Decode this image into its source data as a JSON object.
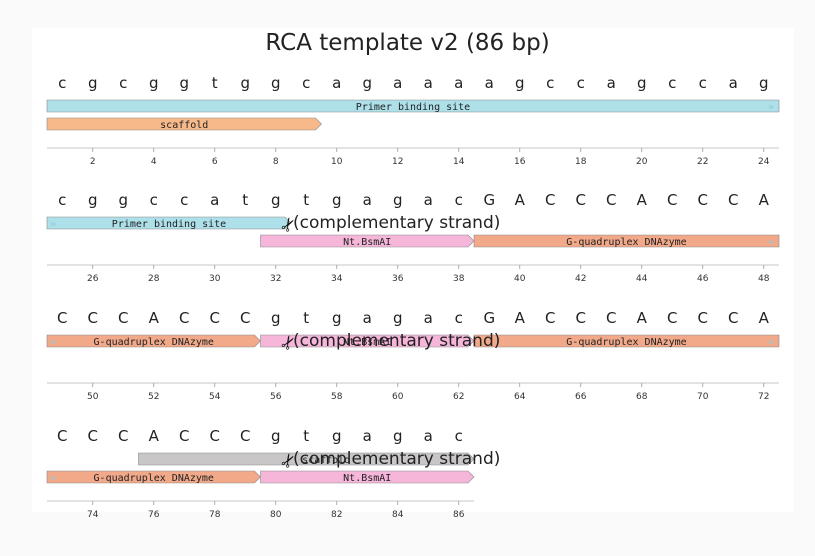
{
  "title": "RCA template v2 (86 bp)",
  "colors": {
    "primer_binding_site": "#aee0ea",
    "scaffold": "#f7b98a",
    "nicking_site": "#f6b6d9",
    "dnazyme": "#f2a98a",
    "scaffold_complement": "#c8c6c6",
    "arrow_marker": "#9ad6dd"
  },
  "rows": [
    {
      "start": 1,
      "bases": [
        "c",
        "g",
        "c",
        "g",
        "g",
        "t",
        "g",
        "g",
        "c",
        "a",
        "g",
        "a",
        "a",
        "a",
        "a",
        "g",
        "c",
        "c",
        "a",
        "g",
        "c",
        "c",
        "a",
        "g"
      ],
      "tick_labels": [
        "2",
        "4",
        "6",
        "8",
        "10",
        "12",
        "14",
        "16",
        "18",
        "20",
        "22",
        "24"
      ],
      "features": [
        {
          "label": "Primer binding site",
          "start": 1,
          "end": 24,
          "type": "primer_binding_site",
          "arrow": "continues"
        },
        {
          "label": "scaffold",
          "start": 1,
          "end": 9,
          "type": "scaffold",
          "arrow": "ends"
        }
      ],
      "cut_sites": []
    },
    {
      "start": 25,
      "bases": [
        "c",
        "g",
        "g",
        "c",
        "c",
        "a",
        "t",
        "g",
        "t",
        "g",
        "a",
        "g",
        "a",
        "c",
        "G",
        "A",
        "C",
        "C",
        "C",
        "A",
        "C",
        "C",
        "C",
        "A"
      ],
      "tick_labels": [
        "26",
        "28",
        "30",
        "32",
        "34",
        "36",
        "38",
        "40",
        "42",
        "44",
        "46",
        "48"
      ],
      "features": [
        {
          "label": "Primer binding site",
          "start": 25,
          "end": 32,
          "type": "primer_binding_site",
          "arrow": "ends",
          "cont_left": true
        },
        {
          "label": "Nt.BsmAI",
          "start": 32,
          "end": 38,
          "type": "nicking_site",
          "arrow": "ends"
        },
        {
          "label": "G-quadruplex DNAzyme",
          "start": 39,
          "end": 48,
          "type": "dnazyme",
          "arrow": "continues"
        }
      ],
      "cut_sites": [
        {
          "label": "(complementary strand)",
          "after_base": 32
        }
      ]
    },
    {
      "start": 49,
      "bases": [
        "C",
        "C",
        "C",
        "A",
        "C",
        "C",
        "C",
        "g",
        "t",
        "g",
        "a",
        "g",
        "a",
        "c",
        "G",
        "A",
        "C",
        "C",
        "C",
        "A",
        "C",
        "C",
        "C",
        "A"
      ],
      "tick_labels": [
        "50",
        "52",
        "54",
        "56",
        "58",
        "60",
        "62",
        "64",
        "66",
        "68",
        "70",
        "72"
      ],
      "features": [
        {
          "label": "G-quadruplex DNAzyme",
          "start": 49,
          "end": 55,
          "type": "dnazyme",
          "arrow": "ends",
          "cont_left": true
        },
        {
          "label": "Nt.BsmAI",
          "start": 56,
          "end": 62,
          "type": "nicking_site",
          "arrow": "ends"
        },
        {
          "label": "G-quadruplex DNAzyme",
          "start": 63,
          "end": 72,
          "type": "dnazyme",
          "arrow": "continues"
        }
      ],
      "cut_sites": [
        {
          "label": "(complementary strand)",
          "after_base": 56
        }
      ]
    },
    {
      "start": 73,
      "bases": [
        "C",
        "C",
        "C",
        "A",
        "C",
        "C",
        "C",
        "g",
        "t",
        "g",
        "a",
        "g",
        "a",
        "c"
      ],
      "tick_labels": [
        "74",
        "76",
        "78",
        "80",
        "82",
        "84",
        "86"
      ],
      "features": [
        {
          "label": "scaffold",
          "start": 76,
          "end": 86,
          "type": "scaffold_complement",
          "arrow": "ends",
          "reverse": true
        },
        {
          "label": "G-quadruplex DNAzyme",
          "start": 73,
          "end": 79,
          "type": "dnazyme",
          "arrow": "ends",
          "cont_left": true
        },
        {
          "label": "Nt.BsmAI",
          "start": 80,
          "end": 86,
          "type": "nicking_site",
          "arrow": "ends"
        }
      ],
      "cut_sites": [
        {
          "label": "(complementary strand)",
          "after_base": 80
        }
      ]
    }
  ]
}
